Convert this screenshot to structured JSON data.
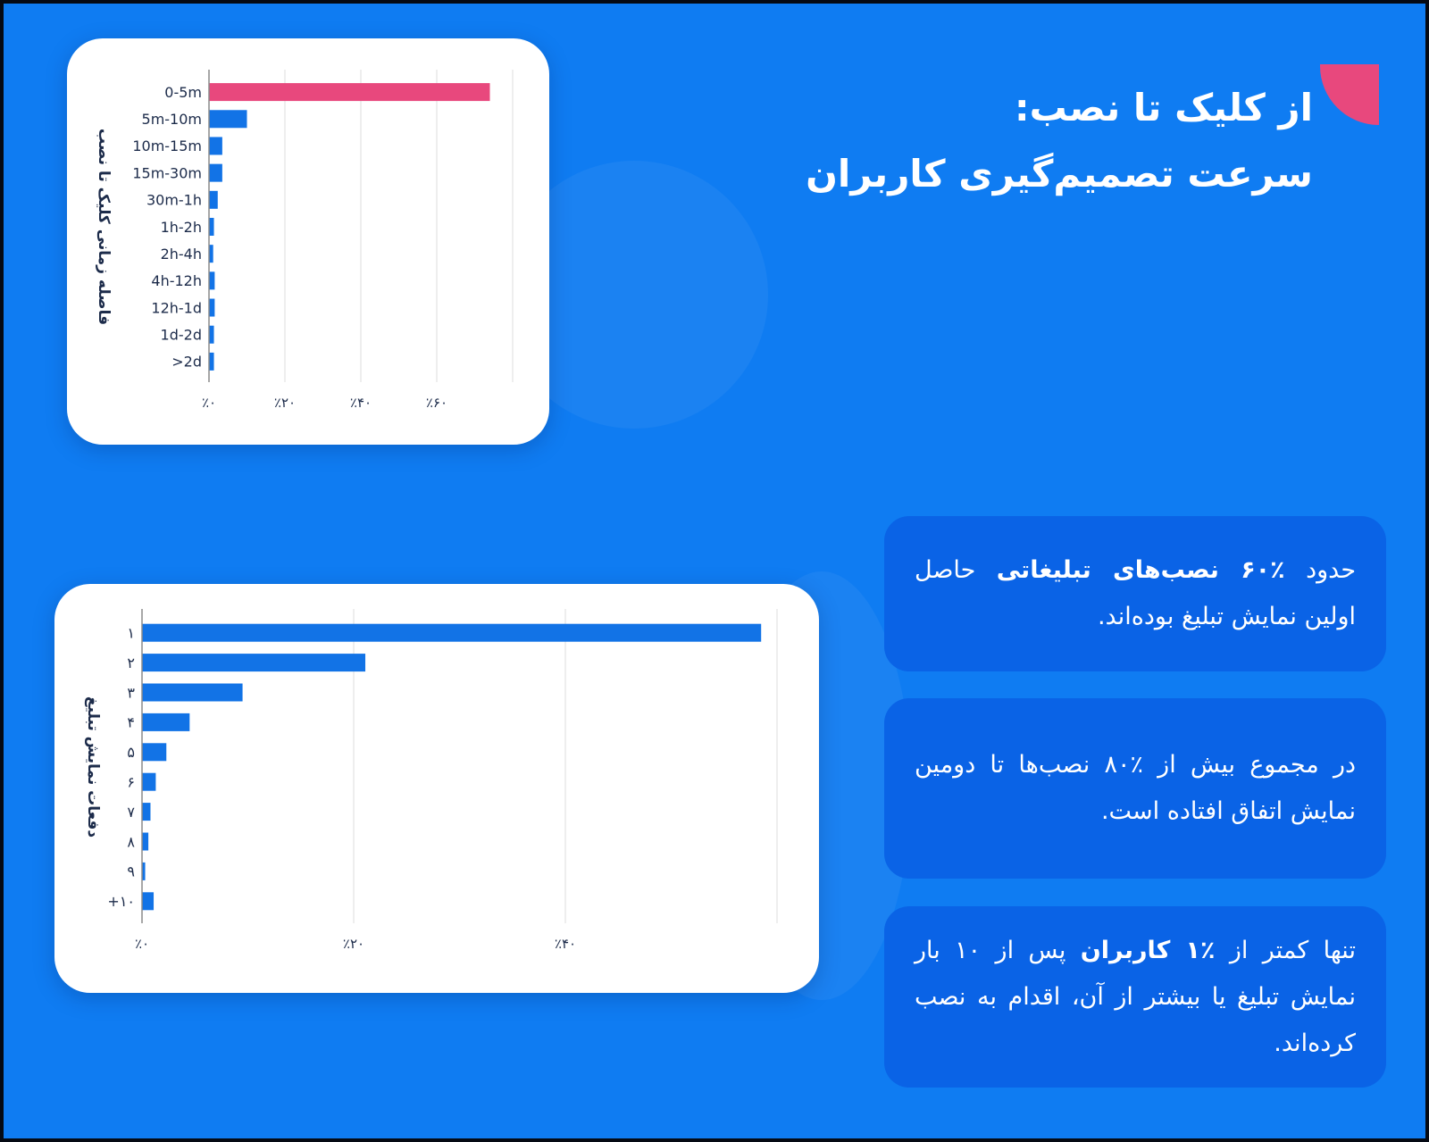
{
  "title": {
    "line1": "از کلیک تا نصب:",
    "line2": "سرعت تصمیم‌گیری کاربران"
  },
  "colors": {
    "background": "#0f7cf2",
    "bar": "#1273e6",
    "highlight": "#e8487d",
    "card": "#ffffff",
    "info_box": "#0a63e6"
  },
  "chart_data": [
    {
      "type": "bar",
      "orientation": "horizontal",
      "ylabel": "فاصله زمانی کلیک تا نصب",
      "xlabel": "",
      "categories": [
        "0-5m",
        "5m-10m",
        "10m-15m",
        "15m-30m",
        "30m-1h",
        "1h-2h",
        "2h-4h",
        "4h-12h",
        "12h-1d",
        "1d-2d",
        ">2d"
      ],
      "values": [
        74,
        10,
        3.5,
        3.5,
        2.3,
        1.3,
        1.1,
        1.5,
        1.5,
        1.3,
        1.3
      ],
      "highlight_index": 0,
      "xlim": [
        0,
        80
      ],
      "xticks": [
        0,
        20,
        40,
        60
      ],
      "xtick_labels": [
        "٪۰",
        "٪۲۰",
        "٪۴۰",
        "٪۶۰"
      ],
      "grid": true
    },
    {
      "type": "bar",
      "orientation": "horizontal",
      "ylabel": "دفعات نمایش تبلیغ",
      "xlabel": "",
      "categories": [
        "۱",
        "۲",
        "۳",
        "۴",
        "۵",
        "۶",
        "۷",
        "۸",
        "۹",
        "+۱۰"
      ],
      "values": [
        58.5,
        21.1,
        9.5,
        4.5,
        2.3,
        1.3,
        0.8,
        0.6,
        0.3,
        1.1
      ],
      "xlim": [
        0,
        60
      ],
      "xticks": [
        0,
        20,
        40
      ],
      "xtick_labels": [
        "٪۰",
        "٪۲۰",
        "٪۴۰"
      ],
      "grid": true
    }
  ],
  "info": {
    "box1": {
      "pre": "حدود ",
      "bold": "٪۶۰ نصب‌های تبلیغاتی",
      "post": " حاصل اولین نمایش تبلیغ بوده‌اند."
    },
    "box2": {
      "text": "در مجموع بیش از ٪۸۰ نصب‌ها تا دومین نمایش اتفاق افتاده است."
    },
    "box3": {
      "pre": "تنها کمتر از ",
      "bold": "٪۱ کاربران",
      "post": " پس از ۱۰ بار نمایش تبلیغ یا بیشتر از آن، اقدام به نصب کرده‌اند."
    }
  }
}
